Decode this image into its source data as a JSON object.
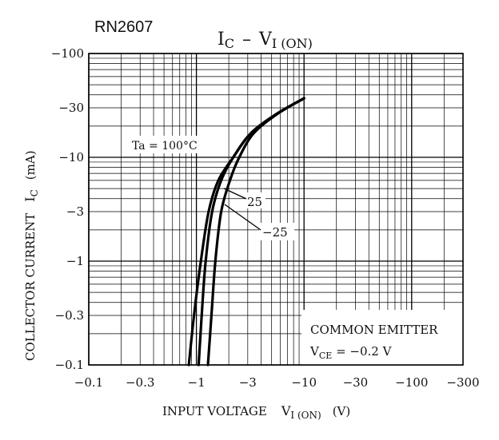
{
  "chart_data": {
    "type": "line",
    "part_number": "RN2607",
    "title_main": "I",
    "title_main_sub": "C",
    "title_dash": "–",
    "title_v": "V",
    "title_v_sub": "I (ON)",
    "xlabel_main": "INPUT VOLTAGE",
    "xlabel_sym": "V",
    "xlabel_sub": "I (ON)",
    "xlabel_unit": "(V)",
    "ylabel_main": "COLLECTOR CURRENT",
    "ylabel_sym": "I",
    "ylabel_sub": "C",
    "ylabel_unit": "(mA)",
    "x_scale": "log",
    "y_scale": "log",
    "xlim": [
      -0.1,
      -300
    ],
    "ylim": [
      -0.1,
      -100
    ],
    "x_ticks": [
      -0.1,
      -0.3,
      -1,
      -3,
      -10,
      -30,
      -100,
      -300
    ],
    "x_tick_labels": [
      "−0.1",
      "−0.3",
      "−1",
      "−3",
      "−10",
      "−30",
      "−100",
      "−300"
    ],
    "y_ticks": [
      -100,
      -30,
      -10,
      -3,
      -1,
      -0.3,
      -0.1
    ],
    "y_tick_labels": [
      "−100",
      "−30",
      "−10",
      "−3",
      "−1",
      "−0.3",
      "−0.1"
    ],
    "grid": true,
    "series": [
      {
        "name": "Ta = 100°C",
        "x": [
          -0.85,
          -0.95,
          -1.1,
          -1.3,
          -1.6,
          -2.2,
          -3.2,
          -5.5,
          -10
        ],
        "y": [
          -0.1,
          -0.3,
          -1,
          -3,
          -6,
          -10,
          -17,
          -26,
          -37
        ]
      },
      {
        "name": "25",
        "x": [
          -1.05,
          -1.12,
          -1.22,
          -1.4,
          -1.7,
          -2.2,
          -3.2,
          -5.5,
          -10
        ],
        "y": [
          -0.1,
          -0.3,
          -1,
          -3,
          -6,
          -10,
          -17,
          -26,
          -37
        ]
      },
      {
        "name": "−25",
        "x": [
          -1.28,
          -1.38,
          -1.5,
          -1.7,
          -2.05,
          -2.5,
          -3.4,
          -5.6,
          -10
        ],
        "y": [
          -0.1,
          -0.3,
          -1,
          -3,
          -6,
          -10,
          -17,
          -26,
          -37
        ]
      }
    ],
    "annotations": {
      "ta_label": "Ta = 100°C",
      "label_25": "25",
      "label_m25": "−25",
      "legend_line1": "COMMON EMITTER",
      "legend_v": "V",
      "legend_v_sub": "CE",
      "legend_v_value": " = −0.2 V"
    }
  }
}
